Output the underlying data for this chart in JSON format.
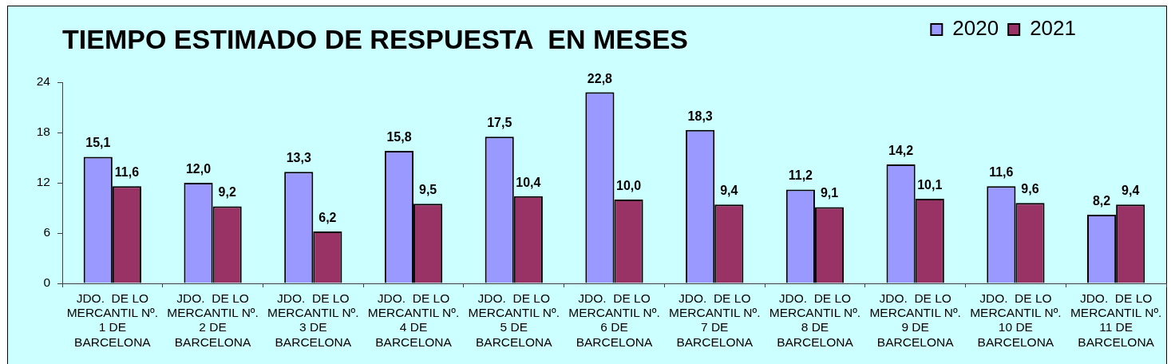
{
  "chart_data": {
    "type": "bar",
    "title": "TIEMPO ESTIMADO DE RESPUESTA  EN MESES",
    "categories": [
      "JDO.  DE LO\nMERCANTIL Nº.\n1 DE\nBARCELONA",
      "JDO.  DE LO\nMERCANTIL Nº.\n2 DE\nBARCELONA",
      "JDO.  DE LO\nMERCANTIL Nº.\n3 DE\nBARCELONA",
      "JDO.  DE LO\nMERCANTIL Nº.\n4 DE\nBARCELONA",
      "JDO.  DE LO\nMERCANTIL Nº.\n5 DE\nBARCELONA",
      "JDO.  DE LO\nMERCANTIL Nº.\n6 DE\nBARCELONA",
      "JDO.  DE LO\nMERCANTIL Nº.\n7 DE\nBARCELONA",
      "JDO.  DE LO\nMERCANTIL Nº.\n8 DE\nBARCELONA",
      "JDO.  DE LO\nMERCANTIL Nº.\n9 DE\nBARCELONA",
      "JDO.  DE LO\nMERCANTIL Nº.\n10 DE\nBARCELONA",
      "JDO.  DE LO\nMERCANTIL Nº.\n11 DE\nBARCELONA"
    ],
    "series": [
      {
        "name": "2020",
        "color": "#9999ff",
        "values": [
          15.1,
          12.0,
          13.3,
          15.8,
          17.5,
          22.8,
          18.3,
          11.2,
          14.2,
          11.6,
          8.2
        ],
        "value_labels": [
          "15,1",
          "12,0",
          "13,3",
          "15,8",
          "17,5",
          "22,8",
          "18,3",
          "11,2",
          "14,2",
          "11,6",
          "8,2"
        ]
      },
      {
        "name": "2021",
        "color": "#993366",
        "values": [
          11.6,
          9.2,
          6.2,
          9.5,
          10.4,
          10.0,
          9.4,
          9.1,
          10.1,
          9.6,
          9.4
        ],
        "value_labels": [
          "11,6",
          "9,2",
          "6,2",
          "9,5",
          "10,4",
          "10,0",
          "9,4",
          "9,1",
          "10,1",
          "9,6",
          "9,4"
        ]
      }
    ],
    "ylim": [
      0,
      24
    ],
    "yticks": [
      0,
      6,
      12,
      18,
      24
    ],
    "grid": false,
    "legend": "top right"
  }
}
